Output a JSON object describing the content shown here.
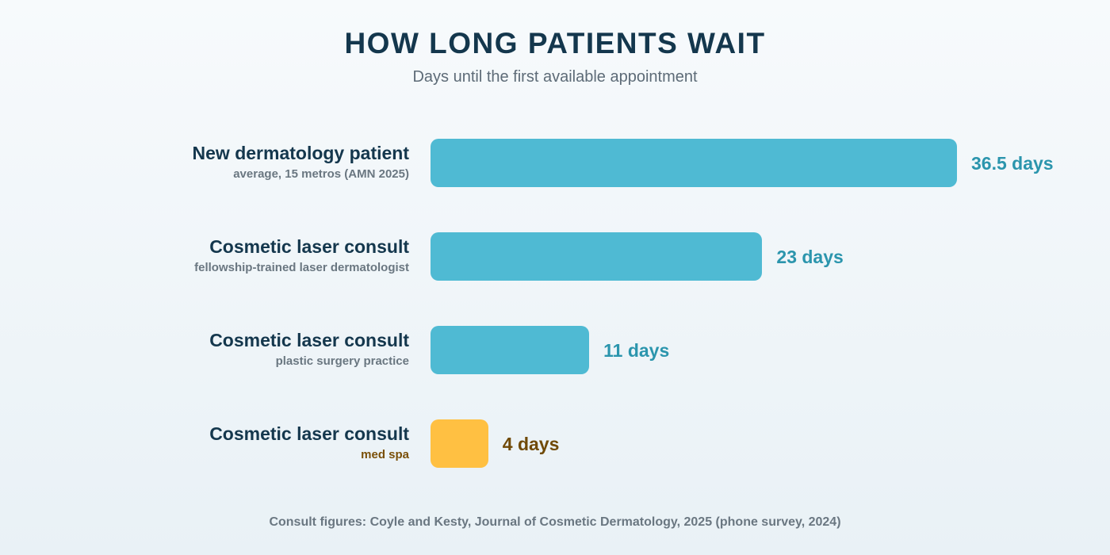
{
  "chart_data": {
    "type": "bar",
    "orientation": "horizontal",
    "title": "HOW LONG PATIENTS WAIT",
    "subtitle": "Days until the first available appointment",
    "categories": [
      "New dermatology patient",
      "Cosmetic laser consult",
      "Cosmetic laser consult",
      "Cosmetic laser consult"
    ],
    "category_notes": [
      "average, 15 metros (AMN 2025)",
      "fellowship-trained laser dermatologist",
      "plastic surgery practice",
      "med spa"
    ],
    "values": [
      36.5,
      23,
      11,
      4
    ],
    "value_labels": [
      "36.5 days",
      "23 days",
      "11 days",
      "4 days"
    ],
    "xlim": [
      0,
      36.5
    ],
    "grid": false,
    "legend": "none",
    "highlight_index": 3,
    "colors": {
      "bar": "#4fbad3",
      "bar_highlight": "#ffc042",
      "value": "#2b95ad",
      "value_highlight": "#704a08"
    },
    "source": "Consult figures: Coyle and Kesty, Journal of Cosmetic Dermatology, 2025 (phone survey, 2024)"
  }
}
